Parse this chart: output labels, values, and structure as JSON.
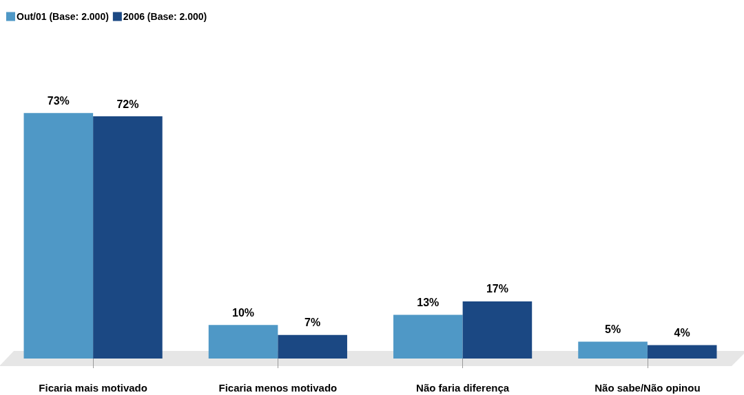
{
  "chart_data": {
    "type": "bar",
    "categories": [
      "Ficaria mais motivado",
      "Ficaria menos motivado",
      "Não faria diferença",
      "Não sabe/Não opinou"
    ],
    "series": [
      {
        "name": "Out/01 (Base: 2.000)",
        "color": "#4f98c6",
        "values": [
          73,
          10,
          13,
          5
        ],
        "value_labels": [
          "73%",
          "10%",
          "13%",
          "5%"
        ]
      },
      {
        "name": "2006 (Base: 2.000)",
        "color": "#1b4883",
        "values": [
          72,
          7,
          17,
          4
        ],
        "value_labels": [
          "72%",
          "7%",
          "17%",
          "4%"
        ]
      }
    ],
    "legend": "top left"
  }
}
